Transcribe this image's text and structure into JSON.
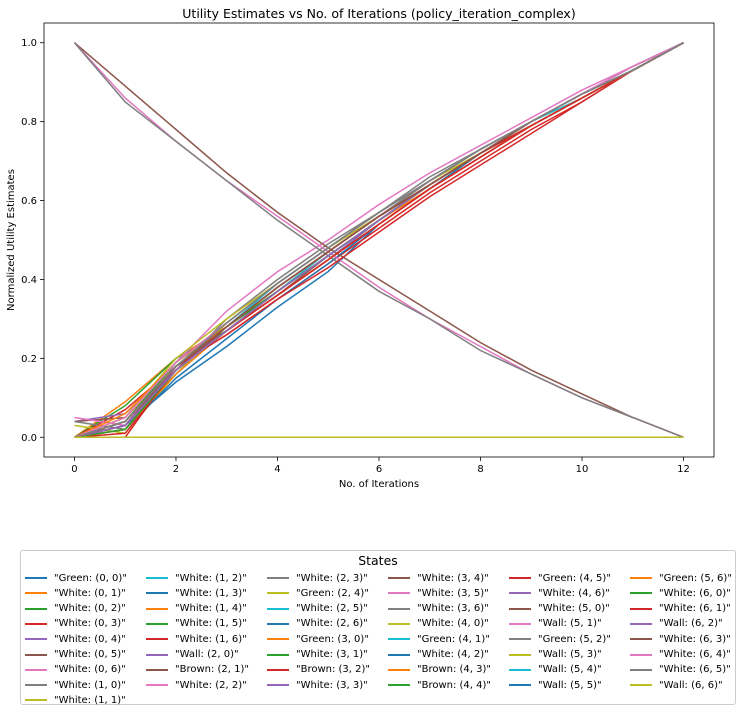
{
  "chart_data": {
    "type": "line",
    "title": "Utility Estimates vs No. of Iterations (policy_iteration_complex)",
    "xlabel": "No. of Iterations",
    "ylabel": "Normalized Utility Estimates",
    "xlim": [
      -0.6,
      12.6
    ],
    "ylim": [
      -0.05,
      1.05
    ],
    "xticks": [
      0,
      2,
      4,
      6,
      8,
      10,
      12
    ],
    "yticks": [
      0.0,
      0.2,
      0.4,
      0.6,
      0.8,
      1.0
    ],
    "xtick_labels": [
      "0",
      "2",
      "4",
      "6",
      "8",
      "10",
      "12"
    ],
    "ytick_labels": [
      "0.0",
      "0.2",
      "0.4",
      "0.6",
      "0.8",
      "1.0"
    ],
    "grid": false,
    "legend": {
      "title": "States",
      "position": "below",
      "columns": 6
    },
    "x": [
      0,
      1,
      2,
      3,
      4,
      5,
      6,
      7,
      8,
      9,
      10,
      11,
      12
    ],
    "series": [
      {
        "name": "\"Green: (0, 0)\"",
        "color": "#1f77b4",
        "values": [
          0.0,
          0.03,
          0.14,
          0.23,
          0.33,
          0.42,
          0.54,
          0.63,
          0.72,
          0.8,
          0.87,
          0.94,
          1.0
        ]
      },
      {
        "name": "\"White: (0, 1)\"",
        "color": "#ff7f0e",
        "values": [
          0.0,
          0.09,
          0.2,
          0.28,
          0.37,
          0.46,
          0.55,
          0.64,
          0.72,
          0.79,
          0.86,
          0.93,
          1.0
        ]
      },
      {
        "name": "\"White: (0, 2)\"",
        "color": "#2ca02c",
        "values": [
          0.0,
          0.08,
          0.2,
          0.27,
          0.36,
          0.45,
          0.55,
          0.64,
          0.72,
          0.79,
          0.86,
          0.93,
          1.0
        ]
      },
      {
        "name": "\"White: (0, 3)\"",
        "color": "#d62728",
        "values": [
          0.0,
          0.07,
          0.18,
          0.26,
          0.35,
          0.44,
          0.53,
          0.62,
          0.7,
          0.78,
          0.85,
          0.93,
          1.0
        ]
      },
      {
        "name": "\"White: (0, 4)\"",
        "color": "#9467bd",
        "values": [
          0.04,
          0.06,
          0.18,
          0.27,
          0.36,
          0.45,
          0.55,
          0.64,
          0.72,
          0.8,
          0.87,
          0.93,
          1.0
        ]
      },
      {
        "name": "\"White: (0, 5)\"",
        "color": "#8c564b",
        "values": [
          0.04,
          0.05,
          0.18,
          0.27,
          0.36,
          0.46,
          0.55,
          0.64,
          0.72,
          0.8,
          0.87,
          0.93,
          1.0
        ]
      },
      {
        "name": "\"White: (0, 6)\"",
        "color": "#e377c2",
        "values": [
          0.05,
          0.03,
          0.19,
          0.32,
          0.42,
          0.5,
          0.59,
          0.67,
          0.74,
          0.81,
          0.88,
          0.94,
          1.0
        ]
      },
      {
        "name": "\"White: (1, 0)\"",
        "color": "#7f7f7f",
        "values": [
          0.04,
          0.02,
          0.17,
          0.3,
          0.4,
          0.49,
          0.57,
          0.66,
          0.73,
          0.8,
          0.87,
          0.94,
          1.0
        ]
      },
      {
        "name": "\"White: (1, 1)\"",
        "color": "#bcbd22",
        "values": [
          0.03,
          0.01,
          0.16,
          0.29,
          0.39,
          0.48,
          0.57,
          0.65,
          0.73,
          0.8,
          0.87,
          0.93,
          1.0
        ]
      },
      {
        "name": "\"White: (1, 2)\"",
        "color": "#17becf",
        "values": [
          0.0,
          0.03,
          0.16,
          0.27,
          0.37,
          0.47,
          0.56,
          0.65,
          0.73,
          0.8,
          0.87,
          0.93,
          1.0
        ]
      },
      {
        "name": "\"White: (1, 3)\"",
        "color": "#1f77b4",
        "values": [
          0.0,
          0.02,
          0.15,
          0.25,
          0.35,
          0.44,
          0.54,
          0.63,
          0.71,
          0.79,
          0.86,
          0.93,
          1.0
        ]
      },
      {
        "name": "\"White: (1, 4)\"",
        "color": "#ff7f0e",
        "values": [
          0.0,
          0.02,
          0.16,
          0.27,
          0.37,
          0.46,
          0.55,
          0.64,
          0.72,
          0.79,
          0.86,
          0.93,
          1.0
        ]
      },
      {
        "name": "\"White: (1, 5)\"",
        "color": "#2ca02c",
        "values": [
          0.0,
          0.02,
          0.17,
          0.28,
          0.38,
          0.47,
          0.56,
          0.64,
          0.72,
          0.79,
          0.86,
          0.93,
          1.0
        ]
      },
      {
        "name": "\"White: (1, 6)\"",
        "color": "#d62728",
        "values": [
          0.0,
          0.01,
          0.17,
          0.28,
          0.37,
          0.46,
          0.55,
          0.64,
          0.72,
          0.8,
          0.87,
          0.93,
          1.0
        ]
      },
      {
        "name": "\"Wall: (2, 0)\"",
        "color": "#9467bd",
        "values": [
          0,
          0,
          0,
          0,
          0,
          0,
          0,
          0,
          0,
          0,
          0,
          0,
          0
        ]
      },
      {
        "name": "\"Brown: (2, 1)\"",
        "color": "#8c564b",
        "values": [
          1.0,
          0.89,
          0.78,
          0.67,
          0.57,
          0.48,
          0.4,
          0.32,
          0.24,
          0.17,
          0.11,
          0.05,
          0.0
        ]
      },
      {
        "name": "\"White: (2, 2)\"",
        "color": "#e377c2",
        "values": [
          1.0,
          0.86,
          0.75,
          0.65,
          0.56,
          0.47,
          0.38,
          0.3,
          0.23,
          0.16,
          0.1,
          0.05,
          0.0
        ]
      },
      {
        "name": "\"White: (2, 3)\"",
        "color": "#7f7f7f",
        "values": [
          1.0,
          0.85,
          0.75,
          0.65,
          0.55,
          0.46,
          0.37,
          0.3,
          0.22,
          0.16,
          0.1,
          0.05,
          0.0
        ]
      },
      {
        "name": "\"Green: (2, 4)\"",
        "color": "#bcbd22",
        "values": [
          0.0,
          0.05,
          0.2,
          0.3,
          0.39,
          0.48,
          0.56,
          0.65,
          0.72,
          0.79,
          0.86,
          0.93,
          1.0
        ]
      },
      {
        "name": "\"White: (2, 5)\"",
        "color": "#17becf",
        "values": [
          0.0,
          0.04,
          0.18,
          0.28,
          0.38,
          0.47,
          0.56,
          0.64,
          0.72,
          0.8,
          0.86,
          0.93,
          1.0
        ]
      },
      {
        "name": "\"White: (2, 6)\"",
        "color": "#1f77b4",
        "values": [
          0.0,
          0.03,
          0.17,
          0.27,
          0.37,
          0.46,
          0.55,
          0.64,
          0.72,
          0.79,
          0.86,
          0.93,
          1.0
        ]
      },
      {
        "name": "\"Green: (3, 0)\"",
        "color": "#ff7f0e",
        "values": [
          0.0,
          0.06,
          0.19,
          0.28,
          0.37,
          0.46,
          0.55,
          0.63,
          0.71,
          0.79,
          0.86,
          0.93,
          1.0
        ]
      },
      {
        "name": "\"White: (3, 1)\"",
        "color": "#2ca02c",
        "values": [
          0.0,
          0.05,
          0.19,
          0.28,
          0.37,
          0.46,
          0.55,
          0.64,
          0.72,
          0.79,
          0.86,
          0.93,
          1.0
        ]
      },
      {
        "name": "\"Brown: (3, 2)\"",
        "color": "#d62728",
        "values": [
          0.0,
          0.0,
          0.18,
          0.26,
          0.35,
          0.43,
          0.52,
          0.61,
          0.69,
          0.77,
          0.85,
          0.93,
          1.0
        ]
      },
      {
        "name": "\"White: (3, 3)\"",
        "color": "#9467bd",
        "values": [
          0.0,
          0.02,
          0.18,
          0.27,
          0.36,
          0.45,
          0.54,
          0.63,
          0.71,
          0.79,
          0.86,
          0.93,
          1.0
        ]
      },
      {
        "name": "\"White: (3, 4)\"",
        "color": "#8c564b",
        "values": [
          0.0,
          0.03,
          0.18,
          0.27,
          0.36,
          0.45,
          0.54,
          0.63,
          0.71,
          0.79,
          0.86,
          0.93,
          1.0
        ]
      },
      {
        "name": "\"White: (3, 5)\"",
        "color": "#e377c2",
        "values": [
          0.0,
          0.04,
          0.18,
          0.28,
          0.38,
          0.47,
          0.56,
          0.65,
          0.73,
          0.8,
          0.87,
          0.93,
          1.0
        ]
      },
      {
        "name": "\"White: (3, 6)\"",
        "color": "#7f7f7f",
        "values": [
          0.0,
          0.03,
          0.17,
          0.27,
          0.37,
          0.46,
          0.55,
          0.64,
          0.72,
          0.8,
          0.87,
          0.93,
          1.0
        ]
      },
      {
        "name": "\"White: (4, 0)\"",
        "color": "#bcbd22",
        "values": [
          0.0,
          0.05,
          0.18,
          0.28,
          0.38,
          0.47,
          0.56,
          0.64,
          0.72,
          0.79,
          0.86,
          0.93,
          1.0
        ]
      },
      {
        "name": "\"Green: (4, 1)\"",
        "color": "#17becf",
        "values": [
          0.0,
          0.04,
          0.18,
          0.28,
          0.39,
          0.48,
          0.57,
          0.65,
          0.73,
          0.8,
          0.87,
          0.93,
          1.0
        ]
      },
      {
        "name": "\"White: (4, 2)\"",
        "color": "#1f77b4",
        "values": [
          0.0,
          0.03,
          0.17,
          0.27,
          0.37,
          0.46,
          0.55,
          0.64,
          0.72,
          0.79,
          0.86,
          0.93,
          1.0
        ]
      },
      {
        "name": "\"Brown: (4, 3)\"",
        "color": "#ff7f0e",
        "values": [
          0.0,
          0.02,
          0.17,
          0.27,
          0.36,
          0.45,
          0.54,
          0.63,
          0.71,
          0.79,
          0.86,
          0.93,
          1.0
        ]
      },
      {
        "name": "\"Brown: (4, 4)\"",
        "color": "#2ca02c",
        "values": [
          0.0,
          0.02,
          0.17,
          0.27,
          0.37,
          0.46,
          0.55,
          0.64,
          0.72,
          0.79,
          0.86,
          0.93,
          1.0
        ]
      },
      {
        "name": "\"Green: (4, 5)\"",
        "color": "#d62728",
        "values": [
          0.0,
          0.03,
          0.17,
          0.27,
          0.36,
          0.45,
          0.54,
          0.63,
          0.71,
          0.79,
          0.86,
          0.93,
          1.0
        ]
      },
      {
        "name": "\"White: (4, 6)\"",
        "color": "#9467bd",
        "values": [
          0.0,
          0.03,
          0.17,
          0.27,
          0.37,
          0.46,
          0.55,
          0.64,
          0.72,
          0.79,
          0.86,
          0.93,
          1.0
        ]
      },
      {
        "name": "\"White: (5, 0)\"",
        "color": "#8c564b",
        "values": [
          0.0,
          0.04,
          0.18,
          0.28,
          0.38,
          0.47,
          0.56,
          0.64,
          0.72,
          0.8,
          0.87,
          0.93,
          1.0
        ]
      },
      {
        "name": "\"Wall: (5, 1)\"",
        "color": "#e377c2",
        "values": [
          0,
          0,
          0,
          0,
          0,
          0,
          0,
          0,
          0,
          0,
          0,
          0,
          0
        ]
      },
      {
        "name": "\"Green: (5, 2)\"",
        "color": "#7f7f7f",
        "values": [
          0.0,
          0.04,
          0.18,
          0.28,
          0.38,
          0.47,
          0.56,
          0.65,
          0.73,
          0.8,
          0.87,
          0.93,
          1.0
        ]
      },
      {
        "name": "\"Wall: (5, 3)\"",
        "color": "#bcbd22",
        "values": [
          0,
          0,
          0,
          0,
          0,
          0,
          0,
          0,
          0,
          0,
          0,
          0,
          0
        ]
      },
      {
        "name": "\"Wall: (5, 4)\"",
        "color": "#17becf",
        "values": [
          0,
          0,
          0,
          0,
          0,
          0,
          0,
          0,
          0,
          0,
          0,
          0,
          0
        ]
      },
      {
        "name": "\"Wall: (5, 5)\"",
        "color": "#1f77b4",
        "values": [
          0,
          0,
          0,
          0,
          0,
          0,
          0,
          0,
          0,
          0,
          0,
          0,
          0
        ]
      },
      {
        "name": "\"Green: (5, 6)\"",
        "color": "#ff7f0e",
        "values": [
          0.0,
          0.05,
          0.19,
          0.28,
          0.38,
          0.47,
          0.56,
          0.64,
          0.72,
          0.79,
          0.86,
          0.93,
          1.0
        ]
      },
      {
        "name": "\"White: (6, 0)\"",
        "color": "#2ca02c",
        "values": [
          0.0,
          0.04,
          0.19,
          0.29,
          0.39,
          0.48,
          0.57,
          0.65,
          0.73,
          0.8,
          0.87,
          0.93,
          1.0
        ]
      },
      {
        "name": "\"White: (6, 1)\"",
        "color": "#d62728",
        "values": [
          0.0,
          0.04,
          0.18,
          0.28,
          0.38,
          0.47,
          0.56,
          0.64,
          0.72,
          0.79,
          0.86,
          0.93,
          1.0
        ]
      },
      {
        "name": "\"Wall: (6, 2)\"",
        "color": "#9467bd",
        "values": [
          0,
          0,
          0,
          0,
          0,
          0,
          0,
          0,
          0,
          0,
          0,
          0,
          0
        ]
      },
      {
        "name": "\"White: (6, 3)\"",
        "color": "#8c564b",
        "values": [
          0.0,
          0.04,
          0.18,
          0.28,
          0.38,
          0.47,
          0.56,
          0.64,
          0.72,
          0.8,
          0.87,
          0.93,
          1.0
        ]
      },
      {
        "name": "\"White: (6, 4)\"",
        "color": "#e377c2",
        "values": [
          0.0,
          0.05,
          0.19,
          0.29,
          0.39,
          0.48,
          0.57,
          0.65,
          0.73,
          0.8,
          0.87,
          0.94,
          1.0
        ]
      },
      {
        "name": "\"White: (6, 5)\"",
        "color": "#7f7f7f",
        "values": [
          0.0,
          0.04,
          0.18,
          0.29,
          0.39,
          0.48,
          0.57,
          0.65,
          0.73,
          0.8,
          0.87,
          0.93,
          1.0
        ]
      },
      {
        "name": "\"Wall: (6, 6)\"",
        "color": "#bcbd22",
        "values": [
          0,
          0,
          0,
          0,
          0,
          0,
          0,
          0,
          0,
          0,
          0,
          0,
          0
        ]
      }
    ]
  }
}
